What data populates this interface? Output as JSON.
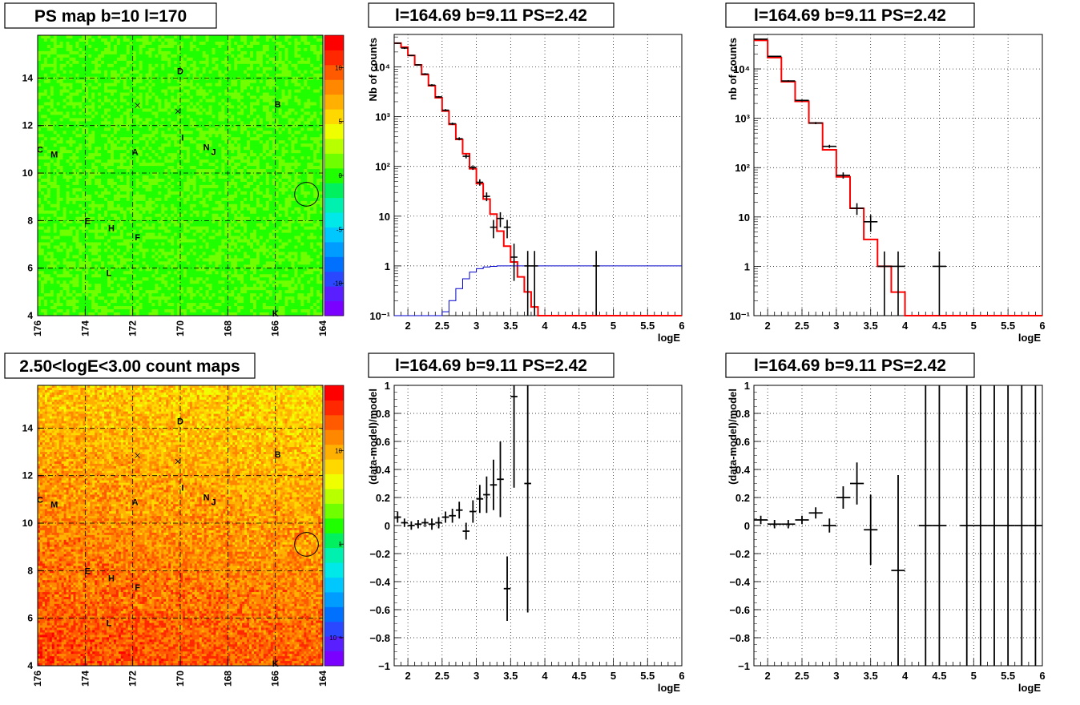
{
  "figure_title": "",
  "chart_data": [
    {
      "id": "psmap",
      "type": "heatmap",
      "title": "PS map b=10 l=170",
      "xlim": [
        176,
        164
      ],
      "ylim": [
        4,
        15.8
      ],
      "x_ticks": [
        176,
        174,
        172,
        170,
        168,
        166,
        164
      ],
      "y_ticks": [
        4,
        6,
        8,
        10,
        12,
        14
      ],
      "colorbar_ticks": [
        10,
        5,
        0,
        -5,
        -10
      ],
      "colorbar_range": [
        -13,
        13
      ],
      "colorbar_scale": "linear",
      "field_trend": "uniform, mostly near 0",
      "labels": [
        {
          "text": "D",
          "l": 170.0,
          "b": 14.3
        },
        {
          "text": "B",
          "l": 165.9,
          "b": 12.9
        },
        {
          "text": "I",
          "l": 169.9,
          "b": 11.5
        },
        {
          "text": "N",
          "l": 168.9,
          "b": 11.1
        },
        {
          "text": "J",
          "l": 168.6,
          "b": 10.9
        },
        {
          "text": "C",
          "l": 175.9,
          "b": 11.0
        },
        {
          "text": "M",
          "l": 175.3,
          "b": 10.8
        },
        {
          "text": "A",
          "l": 171.9,
          "b": 10.9
        },
        {
          "text": "E",
          "l": 173.9,
          "b": 8.0
        },
        {
          "text": "H",
          "l": 172.9,
          "b": 7.7
        },
        {
          "text": "F",
          "l": 171.8,
          "b": 7.3
        },
        {
          "text": "L",
          "l": 173.0,
          "b": 5.8
        },
        {
          "text": "K",
          "l": 166.0,
          "b": 4.1
        }
      ],
      "crosses": [
        {
          "l": 171.8,
          "b": 12.85
        },
        {
          "l": 170.1,
          "b": 12.6
        }
      ],
      "circle": {
        "l": 164.69,
        "b": 9.11,
        "r_deg": 0.5
      }
    },
    {
      "id": "countmap",
      "type": "heatmap",
      "title": "2.50<logE<3.00 count maps",
      "xlim": [
        176,
        164
      ],
      "ylim": [
        4,
        15.8
      ],
      "x_ticks": [
        176,
        174,
        172,
        170,
        168,
        166,
        164
      ],
      "y_ticks": [
        4,
        6,
        8,
        10,
        12,
        14
      ],
      "colorbar_scale": "log",
      "colorbar_ticks": [
        {
          "value": 10,
          "label": "10"
        },
        {
          "value": 1,
          "label": "1"
        },
        {
          "value": 0.1,
          "label": "10⁻¹"
        }
      ],
      "colorbar_range": [
        0.05,
        50
      ],
      "field_trend": "counts increase toward low b and toward high l",
      "labels": [
        {
          "text": "D",
          "l": 170.0,
          "b": 14.3
        },
        {
          "text": "B",
          "l": 165.9,
          "b": 12.9
        },
        {
          "text": "I",
          "l": 169.9,
          "b": 11.5
        },
        {
          "text": "N",
          "l": 168.9,
          "b": 11.1
        },
        {
          "text": "J",
          "l": 168.6,
          "b": 10.9
        },
        {
          "text": "C",
          "l": 175.9,
          "b": 11.0
        },
        {
          "text": "M",
          "l": 175.3,
          "b": 10.8
        },
        {
          "text": "A",
          "l": 171.9,
          "b": 10.9
        },
        {
          "text": "E",
          "l": 173.9,
          "b": 8.0
        },
        {
          "text": "H",
          "l": 172.9,
          "b": 7.7
        },
        {
          "text": "F",
          "l": 171.8,
          "b": 7.3
        },
        {
          "text": "L",
          "l": 173.0,
          "b": 5.8
        },
        {
          "text": "K",
          "l": 166.0,
          "b": 4.1
        }
      ],
      "crosses": [
        {
          "l": 171.8,
          "b": 12.85
        },
        {
          "l": 170.1,
          "b": 12.6
        }
      ],
      "circle": {
        "l": 164.69,
        "b": 9.11,
        "r_deg": 0.5
      }
    },
    {
      "id": "spec1",
      "type": "line",
      "title": "l=164.69 b=9.11 PS=2.42",
      "xlabel": "logE",
      "ylabel": "Nb of counts",
      "xlim": [
        1.8,
        6
      ],
      "ylim": [
        0.1,
        45000
      ],
      "yscale": "log",
      "grid": true,
      "x_ticks": [
        2,
        2.5,
        3,
        3.5,
        4,
        4.5,
        5,
        5.5,
        6
      ],
      "y_ticks": [
        {
          "value": 0.1,
          "label": "10⁻¹"
        },
        {
          "value": 1,
          "label": "1"
        },
        {
          "value": 10,
          "label": "10"
        },
        {
          "value": 100,
          "label": "10²"
        },
        {
          "value": 1000,
          "label": "10³"
        },
        {
          "value": 10000,
          "label": "10⁴"
        }
      ],
      "bin_width": 0.1,
      "x_start": 1.8,
      "series": [
        {
          "role": "model",
          "color": "#ff0000",
          "style": "step",
          "values": [
            30000,
            25000,
            17000,
            11000,
            7000,
            4200,
            2400,
            1300,
            700,
            350,
            180,
            90,
            45,
            22,
            11,
            5,
            2.5,
            1.2,
            0.6,
            0.3,
            0.15,
            0.1,
            0.1,
            0.1,
            0.1,
            0.1,
            0.1,
            0.1,
            0.1,
            0.1,
            0.1,
            0.1,
            0.1,
            0.1,
            0.1,
            0.1,
            0.1,
            0.1,
            0.1,
            0.1,
            0.1,
            0.1
          ]
        },
        {
          "role": "efficiency",
          "color": "#0000cc",
          "style": "step",
          "values": [
            0.1,
            0.1,
            0.1,
            0.1,
            0.1,
            0.1,
            0.1,
            0.12,
            0.2,
            0.35,
            0.55,
            0.75,
            0.88,
            0.95,
            0.98,
            1,
            1,
            1,
            1,
            1,
            1,
            1,
            1,
            1,
            1,
            1,
            1,
            1,
            1,
            1,
            1,
            1,
            1,
            1,
            1,
            1,
            1,
            1,
            1,
            1,
            1,
            1
          ]
        },
        {
          "role": "data",
          "color": "#000000",
          "style": "errorbar",
          "points": [
            {
              "x": 1.85,
              "y": 30000,
              "lo": 29000,
              "hi": 31000
            },
            {
              "x": 1.95,
              "y": 24000,
              "lo": 23000,
              "hi": 25000
            },
            {
              "x": 2.05,
              "y": 17000,
              "lo": 16500,
              "hi": 17500
            },
            {
              "x": 2.15,
              "y": 11000,
              "lo": 10600,
              "hi": 11400
            },
            {
              "x": 2.25,
              "y": 7200,
              "lo": 6900,
              "hi": 7500
            },
            {
              "x": 2.35,
              "y": 4300,
              "lo": 4100,
              "hi": 4500
            },
            {
              "x": 2.45,
              "y": 2500,
              "lo": 2400,
              "hi": 2600
            },
            {
              "x": 2.55,
              "y": 1350,
              "lo": 1280,
              "hi": 1420
            },
            {
              "x": 2.65,
              "y": 720,
              "lo": 680,
              "hi": 760
            },
            {
              "x": 2.75,
              "y": 360,
              "lo": 335,
              "hi": 385
            },
            {
              "x": 2.85,
              "y": 160,
              "lo": 145,
              "hi": 175
            },
            {
              "x": 2.95,
              "y": 95,
              "lo": 85,
              "hi": 105
            },
            {
              "x": 3.05,
              "y": 48,
              "lo": 41,
              "hi": 55
            },
            {
              "x": 3.15,
              "y": 25,
              "lo": 20,
              "hi": 30
            },
            {
              "x": 3.25,
              "y": 6,
              "lo": 3.6,
              "hi": 8.4
            },
            {
              "x": 3.35,
              "y": 9,
              "lo": 6,
              "hi": 12
            },
            {
              "x": 3.45,
              "y": 6,
              "lo": 3.6,
              "hi": 8.4
            },
            {
              "x": 3.55,
              "y": 1.5,
              "lo": 0.5,
              "hi": 2.8
            },
            {
              "x": 3.75,
              "y": 1,
              "lo": 0.1,
              "hi": 2.0
            },
            {
              "x": 3.85,
              "y": 1,
              "lo": 0.1,
              "hi": 2.0
            },
            {
              "x": 4.75,
              "y": 1,
              "lo": 0.1,
              "hi": 2.0
            }
          ]
        }
      ]
    },
    {
      "id": "spec2",
      "type": "line",
      "title": "l=164.69 b=9.11 PS=2.42",
      "xlabel": "logE",
      "ylabel": "nb of counts",
      "xlim": [
        1.8,
        6
      ],
      "ylim": [
        0.1,
        50000
      ],
      "yscale": "log",
      "grid": true,
      "x_ticks": [
        2,
        2.5,
        3,
        3.5,
        4,
        4.5,
        5,
        5.5,
        6
      ],
      "y_ticks": [
        {
          "value": 0.1,
          "label": "10⁻¹"
        },
        {
          "value": 1,
          "label": "1"
        },
        {
          "value": 10,
          "label": "10"
        },
        {
          "value": 100,
          "label": "10²"
        },
        {
          "value": 1000,
          "label": "10³"
        },
        {
          "value": 10000,
          "label": "10⁴"
        }
      ],
      "bin_width": 0.2,
      "x_start": 1.8,
      "series": [
        {
          "role": "model",
          "color": "#ff0000",
          "style": "step",
          "values": [
            38000,
            17000,
            5500,
            2200,
            800,
            230,
            65,
            15,
            3.5,
            1,
            0.3,
            0.1,
            0.1,
            0.1,
            0.1,
            0.1,
            0.1,
            0.1,
            0.1,
            0.1,
            0.1
          ]
        },
        {
          "role": "data",
          "color": "#000000",
          "style": "errorbar",
          "points": [
            {
              "x": 1.9,
              "y": 40000,
              "lo": 39000,
              "hi": 41000
            },
            {
              "x": 2.1,
              "y": 18000,
              "lo": 17500,
              "hi": 18500
            },
            {
              "x": 2.3,
              "y": 5700,
              "lo": 5500,
              "hi": 5900
            },
            {
              "x": 2.5,
              "y": 2300,
              "lo": 2200,
              "hi": 2400
            },
            {
              "x": 2.7,
              "y": 800,
              "lo": 760,
              "hi": 840
            },
            {
              "x": 2.9,
              "y": 270,
              "lo": 250,
              "hi": 290
            },
            {
              "x": 3.1,
              "y": 70,
              "lo": 60,
              "hi": 80
            },
            {
              "x": 3.3,
              "y": 15,
              "lo": 11,
              "hi": 19
            },
            {
              "x": 3.5,
              "y": 8,
              "lo": 5,
              "hi": 11
            },
            {
              "x": 3.7,
              "y": 1,
              "lo": 0.1,
              "hi": 2.0
            },
            {
              "x": 3.9,
              "y": 1,
              "lo": 0.1,
              "hi": 2.0
            },
            {
              "x": 4.5,
              "y": 1,
              "lo": 0.1,
              "hi": 2.0
            }
          ]
        }
      ]
    },
    {
      "id": "res1",
      "type": "scatter",
      "title": "l=164.69 b=9.11 PS=2.42",
      "xlabel": "logE",
      "ylabel": "(data-model)/model",
      "xlim": [
        1.8,
        6
      ],
      "ylim": [
        -1,
        1
      ],
      "grid": true,
      "x_ticks": [
        2,
        2.5,
        3,
        3.5,
        4,
        4.5,
        5,
        5.5,
        6
      ],
      "y_ticks": [
        -1,
        -0.8,
        -0.6,
        -0.4,
        -0.2,
        0,
        0.2,
        0.4,
        0.6,
        0.8,
        1
      ],
      "y_tick_labels": [
        "−1",
        "−0.8",
        "−0.6",
        "−0.4",
        "−0.2",
        "0",
        "0.2",
        "0.4",
        "0.6",
        "0.8",
        "1"
      ],
      "x_halfwidth": 0.05,
      "points": [
        {
          "x": 1.85,
          "y": 0.06,
          "e": 0.04
        },
        {
          "x": 1.95,
          "y": 0.02,
          "e": 0.03
        },
        {
          "x": 2.05,
          "y": 0.0,
          "e": 0.03
        },
        {
          "x": 2.15,
          "y": 0.01,
          "e": 0.03
        },
        {
          "x": 2.25,
          "y": 0.02,
          "e": 0.03
        },
        {
          "x": 2.35,
          "y": 0.01,
          "e": 0.04
        },
        {
          "x": 2.45,
          "y": 0.02,
          "e": 0.04
        },
        {
          "x": 2.55,
          "y": 0.06,
          "e": 0.04
        },
        {
          "x": 2.65,
          "y": 0.07,
          "e": 0.05
        },
        {
          "x": 2.75,
          "y": 0.11,
          "e": 0.06
        },
        {
          "x": 2.85,
          "y": -0.04,
          "e": 0.06
        },
        {
          "x": 2.95,
          "y": 0.1,
          "e": 0.08
        },
        {
          "x": 3.05,
          "y": 0.19,
          "e": 0.1
        },
        {
          "x": 3.15,
          "y": 0.22,
          "e": 0.13
        },
        {
          "x": 3.25,
          "y": 0.29,
          "e": 0.18
        },
        {
          "x": 3.35,
          "y": 0.33,
          "e": 0.27
        },
        {
          "x": 3.45,
          "y": -0.45,
          "e": 0.23
        },
        {
          "x": 3.55,
          "y": 0.92,
          "e": 0.65
        },
        {
          "x": 3.75,
          "y": 0.3,
          "e": 0.92
        }
      ]
    },
    {
      "id": "res2",
      "type": "scatter",
      "title": "l=164.69 b=9.11 PS=2.42",
      "xlabel": "logE",
      "ylabel": "(data-model)/model",
      "xlim": [
        1.8,
        6
      ],
      "ylim": [
        -1,
        1
      ],
      "grid": true,
      "x_ticks": [
        2,
        2.5,
        3,
        3.5,
        4,
        4.5,
        5,
        5.5,
        6
      ],
      "y_ticks": [
        -1,
        -0.8,
        -0.6,
        -0.4,
        -0.2,
        0,
        0.2,
        0.4,
        0.6,
        0.8,
        1
      ],
      "y_tick_labels": [
        "−1",
        "−0.8",
        "−0.6",
        "−0.4",
        "−0.2",
        "0",
        "0.2",
        "0.4",
        "0.6",
        "0.8",
        "1"
      ],
      "x_halfwidth": 0.1,
      "points": [
        {
          "x": 1.9,
          "y": 0.04,
          "e": 0.03
        },
        {
          "x": 2.1,
          "y": 0.01,
          "e": 0.03
        },
        {
          "x": 2.3,
          "y": 0.01,
          "e": 0.03
        },
        {
          "x": 2.5,
          "y": 0.04,
          "e": 0.03
        },
        {
          "x": 2.7,
          "y": 0.09,
          "e": 0.04
        },
        {
          "x": 2.9,
          "y": 0.0,
          "e": 0.05
        },
        {
          "x": 3.1,
          "y": 0.2,
          "e": 0.08
        },
        {
          "x": 3.3,
          "y": 0.3,
          "e": 0.15
        },
        {
          "x": 3.5,
          "y": -0.03,
          "e": 0.25
        },
        {
          "x": 3.9,
          "y": -0.32,
          "e": 0.68
        },
        {
          "x": 4.3,
          "y": 0,
          "e": 5
        },
        {
          "x": 4.5,
          "y": 0,
          "e": 5
        },
        {
          "x": 4.9,
          "y": 0,
          "e": 5
        },
        {
          "x": 5.1,
          "y": 0,
          "e": 5
        },
        {
          "x": 5.3,
          "y": 0,
          "e": 5
        },
        {
          "x": 5.5,
          "y": 0,
          "e": 5
        },
        {
          "x": 5.7,
          "y": 0,
          "e": 5
        },
        {
          "x": 5.9,
          "y": 0,
          "e": 5
        }
      ]
    }
  ]
}
